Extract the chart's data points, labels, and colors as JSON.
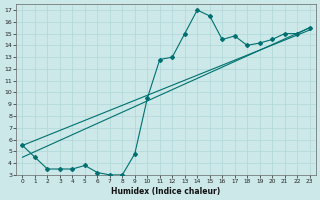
{
  "xlabel": "Humidex (Indice chaleur)",
  "bg_color": "#cce8e8",
  "grid_color": "#b0d8d8",
  "line_color": "#007070",
  "x": [
    0,
    1,
    2,
    3,
    4,
    5,
    6,
    7,
    8,
    9,
    10,
    11,
    12,
    13,
    14,
    15,
    16,
    17,
    18,
    19,
    20,
    21,
    22,
    23
  ],
  "y_curve": [
    5.5,
    4.5,
    3.5,
    3.5,
    3.5,
    3.8,
    3.2,
    3.0,
    3.0,
    4.8,
    9.5,
    12.8,
    13.0,
    15.0,
    17.0,
    16.5,
    14.5,
    14.8,
    14.0,
    14.2,
    14.5,
    15.0,
    15.0,
    15.5
  ],
  "line1_x": [
    0,
    23
  ],
  "line1_y": [
    5.5,
    15.3
  ],
  "line2_x": [
    0,
    23
  ],
  "line2_y": [
    4.5,
    15.5
  ],
  "xlim": [
    -0.5,
    23.5
  ],
  "ylim": [
    3,
    17.5
  ],
  "yticks": [
    3,
    4,
    5,
    6,
    7,
    8,
    9,
    10,
    11,
    12,
    13,
    14,
    15,
    16,
    17
  ],
  "xticks": [
    0,
    1,
    2,
    3,
    4,
    5,
    6,
    7,
    8,
    9,
    10,
    11,
    12,
    13,
    14,
    15,
    16,
    17,
    18,
    19,
    20,
    21,
    22,
    23
  ]
}
